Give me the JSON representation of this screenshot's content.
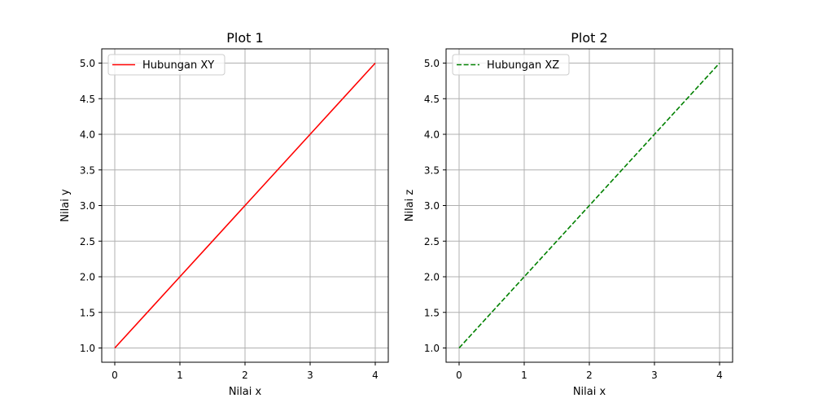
{
  "chart_data": [
    {
      "type": "line",
      "title": "Plot 1",
      "xlabel": "Nilai x",
      "ylabel": "Nilai y",
      "xlim": [
        -0.2,
        4.2
      ],
      "ylim": [
        0.8,
        5.2
      ],
      "xticks": [
        0,
        1,
        2,
        3,
        4
      ],
      "yticks": [
        1.0,
        1.5,
        2.0,
        2.5,
        3.0,
        3.5,
        4.0,
        4.5,
        5.0
      ],
      "ytick_labels": [
        "1.0",
        "1.5",
        "2.0",
        "2.5",
        "3.0",
        "3.5",
        "4.0",
        "4.5",
        "5.0"
      ],
      "grid": true,
      "legend_position": "top-left",
      "series": [
        {
          "name": "Hubungan XY",
          "x": [
            0,
            1,
            2,
            3,
            4
          ],
          "y": [
            1,
            2,
            3,
            4,
            5
          ],
          "color": "#ff0000",
          "linestyle": "solid"
        }
      ]
    },
    {
      "type": "line",
      "title": "Plot 2",
      "xlabel": "Nilai x",
      "ylabel": "Nilai z",
      "xlim": [
        -0.2,
        4.2
      ],
      "ylim": [
        0.8,
        5.2
      ],
      "xticks": [
        0,
        1,
        2,
        3,
        4
      ],
      "yticks": [
        1.0,
        1.5,
        2.0,
        2.5,
        3.0,
        3.5,
        4.0,
        4.5,
        5.0
      ],
      "ytick_labels": [
        "1.0",
        "1.5",
        "2.0",
        "2.5",
        "3.0",
        "3.5",
        "4.0",
        "4.5",
        "5.0"
      ],
      "grid": true,
      "legend_position": "top-left",
      "series": [
        {
          "name": "Hubungan XZ",
          "x": [
            0,
            1,
            2,
            3,
            4
          ],
          "y": [
            1,
            2,
            3,
            4,
            5
          ],
          "color": "#008000",
          "linestyle": "dashed"
        }
      ]
    }
  ]
}
